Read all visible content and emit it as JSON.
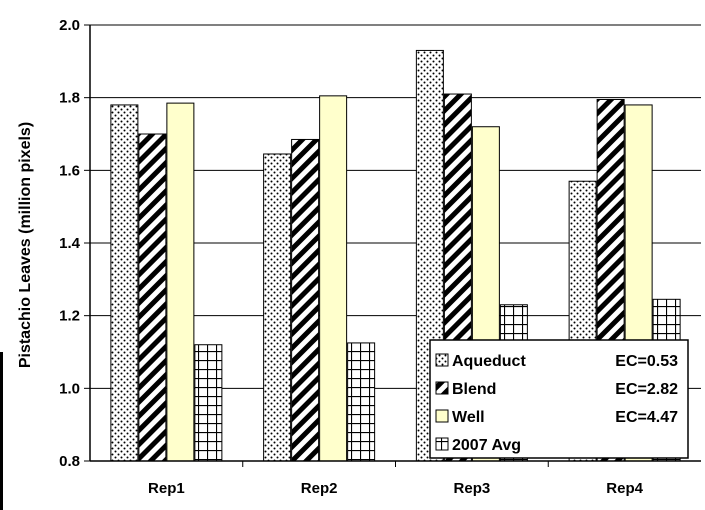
{
  "chart_data": {
    "type": "bar",
    "title": "",
    "xlabel": "",
    "ylabel": "Pistachio Leaves (million pixels)",
    "ylim": [
      0.8,
      2.0
    ],
    "yticks": [
      "0.8",
      "1.0",
      "1.2",
      "1.4",
      "1.6",
      "1.8",
      "2.0"
    ],
    "grid": true,
    "legend_position": "bottom-right",
    "categories": [
      "Rep1",
      "Rep2",
      "Rep3",
      "Rep4"
    ],
    "series": [
      {
        "name": "Aqueduct",
        "ec": "EC=0.53",
        "pattern": "dots",
        "color": "#ffffff",
        "values": [
          1.78,
          1.645,
          1.93,
          1.57
        ]
      },
      {
        "name": "Blend",
        "ec": "EC=2.82",
        "pattern": "diagonal",
        "color": "#ffffff",
        "values": [
          1.7,
          1.685,
          1.81,
          1.795
        ]
      },
      {
        "name": "Well",
        "ec": "EC=4.47",
        "pattern": "solid",
        "color": "#ffffcc",
        "values": [
          1.785,
          1.805,
          1.72,
          1.78
        ]
      },
      {
        "name": "2007 Avg",
        "ec": "",
        "pattern": "grid",
        "color": "#ffffff",
        "values": [
          1.12,
          1.125,
          1.23,
          1.245
        ]
      }
    ]
  }
}
